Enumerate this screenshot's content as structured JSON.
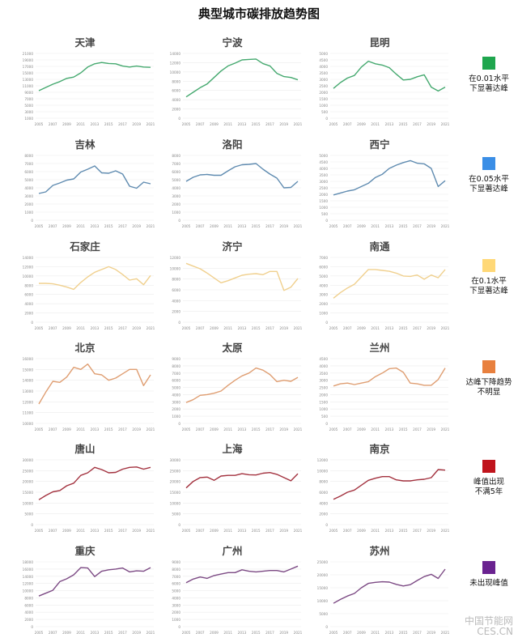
{
  "title": "典型城市碳排放趋势图",
  "watermark": "中国节能网 CES.CN",
  "legend": [
    {
      "label": "在0.01水平\n下显著达峰",
      "color": "#1fa64e"
    },
    {
      "label": "在0.05水平\n下显著达峰",
      "color": "#3a8ee6"
    },
    {
      "label": "在0.1水平\n下显著达峰",
      "color": "#ffd877"
    },
    {
      "label": "达峰下降趋势\n不明显",
      "color": "#e8803e"
    },
    {
      "label": "峰值出现\n不满5年",
      "color": "#c0141c"
    },
    {
      "label": "未出现峰值",
      "color": "#6a2390"
    }
  ],
  "x_ticks": [
    "2005",
    "2007",
    "2009",
    "2011",
    "2013",
    "2015",
    "2017",
    "2019",
    "2021"
  ],
  "chart_data": [
    {
      "type": "line",
      "title": "天津",
      "color": "#45a96f",
      "ylim": [
        1000,
        21000
      ],
      "ystep": 2000,
      "x": [
        2005,
        2006,
        2007,
        2008,
        2009,
        2010,
        2011,
        2012,
        2013,
        2014,
        2015,
        2016,
        2017,
        2018,
        2019,
        2020,
        2021
      ],
      "values": [
        9500,
        10500,
        11500,
        12300,
        13300,
        13700,
        15000,
        16800,
        17800,
        18200,
        17900,
        17800,
        17100,
        16800,
        17100,
        16800,
        16700
      ]
    },
    {
      "type": "line",
      "title": "宁波",
      "color": "#45a96f",
      "ylim": [
        0,
        14000
      ],
      "ystep": 2000,
      "x": [
        2005,
        2006,
        2007,
        2008,
        2009,
        2010,
        2011,
        2012,
        2013,
        2014,
        2015,
        2016,
        2017,
        2018,
        2019,
        2020,
        2021
      ],
      "values": [
        4600,
        5600,
        6600,
        7400,
        8800,
        10200,
        11300,
        11900,
        12600,
        12700,
        12800,
        11800,
        11300,
        9700,
        9000,
        8800,
        8300
      ]
    },
    {
      "type": "line",
      "title": "昆明",
      "color": "#45a96f",
      "ylim": [
        0,
        5000
      ],
      "ystep": 500,
      "x": [
        2005,
        2006,
        2007,
        2008,
        2009,
        2010,
        2011,
        2012,
        2013,
        2014,
        2015,
        2016,
        2017,
        2018,
        2019,
        2020,
        2021
      ],
      "values": [
        2300,
        2750,
        3100,
        3300,
        3950,
        4400,
        4200,
        4100,
        3900,
        3400,
        2950,
        3000,
        3200,
        3350,
        2400,
        2100,
        2400
      ]
    },
    {
      "type": "line",
      "title": "吉林",
      "color": "#5f8bb0",
      "ylim": [
        0,
        8000
      ],
      "ystep": 1000,
      "x": [
        2005,
        2006,
        2007,
        2008,
        2009,
        2010,
        2011,
        2012,
        2013,
        2014,
        2015,
        2016,
        2017,
        2018,
        2019,
        2020,
        2021
      ],
      "values": [
        3300,
        3500,
        4300,
        4600,
        4950,
        5100,
        5950,
        6300,
        6700,
        5850,
        5800,
        6100,
        5700,
        4200,
        3950,
        4700,
        4500
      ]
    },
    {
      "type": "line",
      "title": "洛阳",
      "color": "#5f8bb0",
      "ylim": [
        0,
        8000
      ],
      "ystep": 1000,
      "x": [
        2005,
        2006,
        2007,
        2008,
        2009,
        2010,
        2011,
        2012,
        2013,
        2014,
        2015,
        2016,
        2017,
        2018,
        2019,
        2020,
        2021
      ],
      "values": [
        4800,
        5300,
        5600,
        5650,
        5550,
        5550,
        6100,
        6600,
        6850,
        6900,
        7000,
        6300,
        5700,
        5200,
        4000,
        4050,
        4800
      ]
    },
    {
      "type": "line",
      "title": "西宁",
      "color": "#5f8bb0",
      "ylim": [
        0,
        5000
      ],
      "ystep": 500,
      "x": [
        2005,
        2006,
        2007,
        2008,
        2009,
        2010,
        2011,
        2012,
        2013,
        2014,
        2015,
        2016,
        2017,
        2018,
        2019,
        2020,
        2021
      ],
      "values": [
        1950,
        2100,
        2250,
        2350,
        2600,
        2850,
        3300,
        3550,
        4000,
        4250,
        4450,
        4600,
        4400,
        4350,
        4000,
        2600,
        3050
      ]
    },
    {
      "type": "line",
      "title": "石家庄",
      "color": "#f0d08e",
      "ylim": [
        0,
        14000
      ],
      "ystep": 2000,
      "x": [
        2005,
        2006,
        2007,
        2008,
        2009,
        2010,
        2011,
        2012,
        2013,
        2014,
        2015,
        2016,
        2017,
        2018,
        2019,
        2020,
        2021
      ],
      "values": [
        8400,
        8400,
        8300,
        8000,
        7600,
        7100,
        8600,
        9800,
        10800,
        11400,
        12000,
        11400,
        10300,
        9100,
        9400,
        8100,
        10100
      ]
    },
    {
      "type": "line",
      "title": "济宁",
      "color": "#f0d08e",
      "ylim": [
        0,
        12000
      ],
      "ystep": 2000,
      "x": [
        2005,
        2006,
        2007,
        2008,
        2009,
        2010,
        2011,
        2012,
        2013,
        2014,
        2015,
        2016,
        2017,
        2018,
        2019,
        2020,
        2021
      ],
      "values": [
        10900,
        10400,
        9900,
        9100,
        8200,
        7300,
        7700,
        8200,
        8700,
        8900,
        9000,
        8800,
        9400,
        9400,
        5900,
        6500,
        8100
      ]
    },
    {
      "type": "line",
      "title": "南通",
      "color": "#f0d08e",
      "ylim": [
        0,
        7000
      ],
      "ystep": 1000,
      "x": [
        2005,
        2006,
        2007,
        2008,
        2009,
        2010,
        2011,
        2012,
        2013,
        2014,
        2015,
        2016,
        2017,
        2018,
        2019,
        2020,
        2021
      ],
      "values": [
        2600,
        3200,
        3700,
        4100,
        4900,
        5700,
        5700,
        5600,
        5500,
        5300,
        5000,
        4950,
        5100,
        4650,
        5100,
        4800,
        5700
      ]
    },
    {
      "type": "line",
      "title": "北京",
      "color": "#df9e72",
      "ylim": [
        10000,
        16000
      ],
      "ystep": 1000,
      "x": [
        2005,
        2006,
        2007,
        2008,
        2009,
        2010,
        2011,
        2012,
        2013,
        2014,
        2015,
        2016,
        2017,
        2018,
        2019,
        2020,
        2021
      ],
      "values": [
        11800,
        12900,
        13900,
        13800,
        14300,
        15200,
        15000,
        15500,
        14600,
        14500,
        14000,
        14200,
        14600,
        15000,
        15000,
        13500,
        14500
      ]
    },
    {
      "type": "line",
      "title": "太原",
      "color": "#df9e72",
      "ylim": [
        0,
        9000
      ],
      "ystep": 1000,
      "x": [
        2005,
        2006,
        2007,
        2008,
        2009,
        2010,
        2011,
        2012,
        2013,
        2014,
        2015,
        2016,
        2017,
        2018,
        2019,
        2020,
        2021
      ],
      "values": [
        2900,
        3300,
        3900,
        4000,
        4200,
        4500,
        5300,
        6000,
        6600,
        7000,
        7700,
        7400,
        6800,
        5800,
        6000,
        5850,
        6400
      ]
    },
    {
      "type": "line",
      "title": "兰州",
      "color": "#df9e72",
      "ylim": [
        0,
        4500
      ],
      "ystep": 500,
      "x": [
        2005,
        2006,
        2007,
        2008,
        2009,
        2010,
        2011,
        2012,
        2013,
        2014,
        2015,
        2016,
        2017,
        2018,
        2019,
        2020,
        2021
      ],
      "values": [
        2600,
        2750,
        2800,
        2700,
        2800,
        2900,
        3250,
        3500,
        3800,
        3850,
        3550,
        2800,
        2750,
        2650,
        2650,
        3050,
        3850
      ]
    },
    {
      "type": "line",
      "title": "唐山",
      "color": "#a3323f",
      "ylim": [
        0,
        30000
      ],
      "ystep": 5000,
      "x": [
        2005,
        2006,
        2007,
        2008,
        2009,
        2010,
        2011,
        2012,
        2013,
        2014,
        2015,
        2016,
        2017,
        2018,
        2019,
        2020,
        2021
      ],
      "values": [
        11500,
        13500,
        15200,
        15800,
        18000,
        19200,
        22800,
        24000,
        26500,
        25500,
        24000,
        24200,
        25700,
        26500,
        26700,
        25700,
        26500
      ]
    },
    {
      "type": "line",
      "title": "上海",
      "color": "#a3323f",
      "ylim": [
        0,
        30000
      ],
      "ystep": 5000,
      "x": [
        2005,
        2006,
        2007,
        2008,
        2009,
        2010,
        2011,
        2012,
        2013,
        2014,
        2015,
        2016,
        2017,
        2018,
        2019,
        2020,
        2021
      ],
      "values": [
        17000,
        20000,
        21800,
        22000,
        20500,
        22500,
        22800,
        22800,
        23600,
        23100,
        23000,
        23800,
        24100,
        23300,
        21800,
        20300,
        23600
      ]
    },
    {
      "type": "line",
      "title": "南京",
      "color": "#a3323f",
      "ylim": [
        0,
        12000
      ],
      "ystep": 2000,
      "x": [
        2005,
        2006,
        2007,
        2008,
        2009,
        2010,
        2011,
        2012,
        2013,
        2014,
        2015,
        2016,
        2017,
        2018,
        2019,
        2020,
        2021
      ],
      "values": [
        4700,
        5300,
        6000,
        6400,
        7300,
        8200,
        8600,
        8900,
        8900,
        8300,
        8100,
        8100,
        8300,
        8400,
        8700,
        10200,
        10100
      ]
    },
    {
      "type": "line",
      "title": "重庆",
      "color": "#7c4a84",
      "ylim": [
        0,
        18000
      ],
      "ystep": 2000,
      "x": [
        2005,
        2006,
        2007,
        2008,
        2009,
        2010,
        2011,
        2012,
        2013,
        2014,
        2015,
        2016,
        2017,
        2018,
        2019,
        2020,
        2021
      ],
      "values": [
        8500,
        9300,
        10100,
        12500,
        13300,
        14400,
        16400,
        16300,
        13900,
        15400,
        15800,
        16000,
        16300,
        15200,
        15500,
        15400,
        16400
      ]
    },
    {
      "type": "line",
      "title": "广州",
      "color": "#7c4a84",
      "ylim": [
        0,
        9000
      ],
      "ystep": 1000,
      "x": [
        2005,
        2006,
        2007,
        2008,
        2009,
        2010,
        2011,
        2012,
        2013,
        2014,
        2015,
        2016,
        2017,
        2018,
        2019,
        2020,
        2021
      ],
      "values": [
        6100,
        6600,
        6900,
        6700,
        7100,
        7300,
        7500,
        7500,
        7900,
        7700,
        7600,
        7700,
        7800,
        7800,
        7600,
        8000,
        8400
      ]
    },
    {
      "type": "line",
      "title": "苏州",
      "color": "#7c4a84",
      "ylim": [
        0,
        25000
      ],
      "ystep": 5000,
      "x": [
        2005,
        2006,
        2007,
        2008,
        2009,
        2010,
        2011,
        2012,
        2013,
        2014,
        2015,
        2016,
        2017,
        2018,
        2019,
        2020,
        2021
      ],
      "values": [
        9000,
        10500,
        11800,
        12800,
        15000,
        16700,
        17100,
        17300,
        17200,
        16300,
        15700,
        16200,
        17800,
        19300,
        20200,
        18600,
        22200
      ]
    }
  ]
}
